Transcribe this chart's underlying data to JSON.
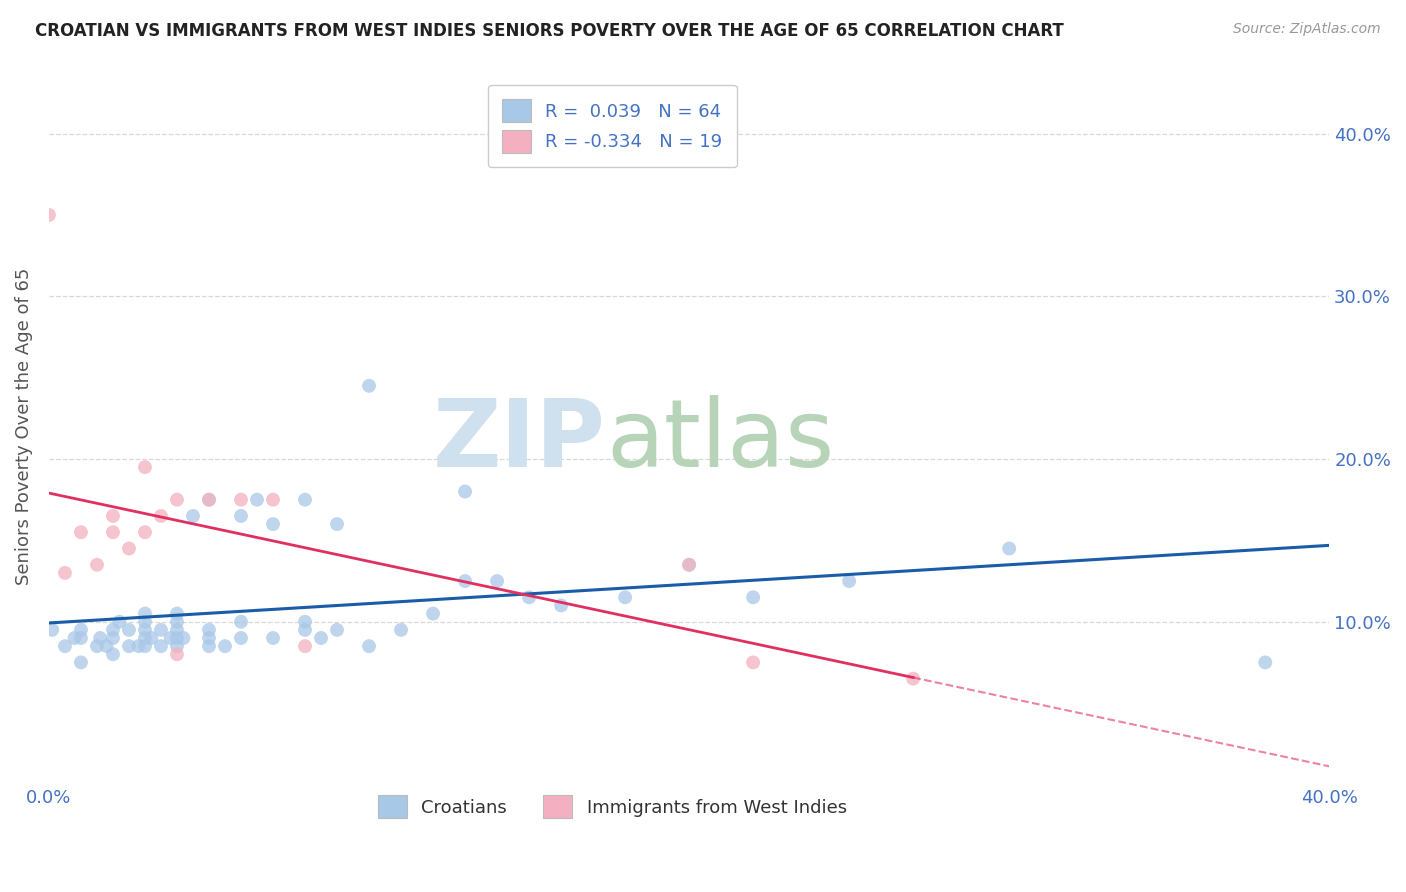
{
  "title": "CROATIAN VS IMMIGRANTS FROM WEST INDIES SENIORS POVERTY OVER THE AGE OF 65 CORRELATION CHART",
  "source": "Source: ZipAtlas.com",
  "ylabel": "Seniors Poverty Over the Age of 65",
  "xlim": [
    0.0,
    0.4
  ],
  "ylim": [
    0.0,
    0.44
  ],
  "xticks": [
    0.0,
    0.1,
    0.2,
    0.3,
    0.4
  ],
  "yticks": [
    0.1,
    0.2,
    0.3,
    0.4
  ],
  "xticklabels": [
    "0.0%",
    "",
    "",
    "",
    "40.0%"
  ],
  "yticklabels": [
    "10.0%",
    "20.0%",
    "30.0%",
    "40.0%"
  ],
  "blue_R": 0.039,
  "blue_N": 64,
  "pink_R": -0.334,
  "pink_N": 19,
  "blue_color": "#a8c8e8",
  "pink_color": "#f4b0c0",
  "blue_line_color": "#1a5ca8",
  "pink_line_color": "#e03060",
  "legend_label_blue": "Croatians",
  "legend_label_pink": "Immigrants from West Indies",
  "blue_scatter_x": [
    0.001,
    0.005,
    0.008,
    0.01,
    0.01,
    0.01,
    0.015,
    0.016,
    0.018,
    0.02,
    0.02,
    0.02,
    0.022,
    0.025,
    0.025,
    0.028,
    0.03,
    0.03,
    0.03,
    0.03,
    0.03,
    0.032,
    0.035,
    0.035,
    0.038,
    0.04,
    0.04,
    0.04,
    0.04,
    0.04,
    0.042,
    0.045,
    0.05,
    0.05,
    0.05,
    0.05,
    0.055,
    0.06,
    0.06,
    0.06,
    0.065,
    0.07,
    0.07,
    0.08,
    0.08,
    0.08,
    0.085,
    0.09,
    0.09,
    0.1,
    0.1,
    0.11,
    0.12,
    0.13,
    0.13,
    0.14,
    0.15,
    0.16,
    0.18,
    0.2,
    0.22,
    0.25,
    0.3,
    0.38
  ],
  "blue_scatter_y": [
    0.095,
    0.085,
    0.09,
    0.075,
    0.09,
    0.095,
    0.085,
    0.09,
    0.085,
    0.08,
    0.09,
    0.095,
    0.1,
    0.085,
    0.095,
    0.085,
    0.085,
    0.09,
    0.095,
    0.1,
    0.105,
    0.09,
    0.085,
    0.095,
    0.09,
    0.085,
    0.09,
    0.095,
    0.1,
    0.105,
    0.09,
    0.165,
    0.085,
    0.09,
    0.095,
    0.175,
    0.085,
    0.09,
    0.1,
    0.165,
    0.175,
    0.09,
    0.16,
    0.095,
    0.1,
    0.175,
    0.09,
    0.095,
    0.16,
    0.085,
    0.245,
    0.095,
    0.105,
    0.125,
    0.18,
    0.125,
    0.115,
    0.11,
    0.115,
    0.135,
    0.115,
    0.125,
    0.145,
    0.075
  ],
  "pink_scatter_x": [
    0.0,
    0.005,
    0.01,
    0.015,
    0.02,
    0.02,
    0.025,
    0.03,
    0.03,
    0.035,
    0.04,
    0.04,
    0.05,
    0.06,
    0.07,
    0.08,
    0.2,
    0.22,
    0.27
  ],
  "pink_scatter_y": [
    0.35,
    0.13,
    0.155,
    0.135,
    0.155,
    0.165,
    0.145,
    0.155,
    0.195,
    0.165,
    0.175,
    0.08,
    0.175,
    0.175,
    0.175,
    0.085,
    0.135,
    0.075,
    0.065
  ],
  "background_color": "#ffffff",
  "grid_color": "#d8d8d8"
}
